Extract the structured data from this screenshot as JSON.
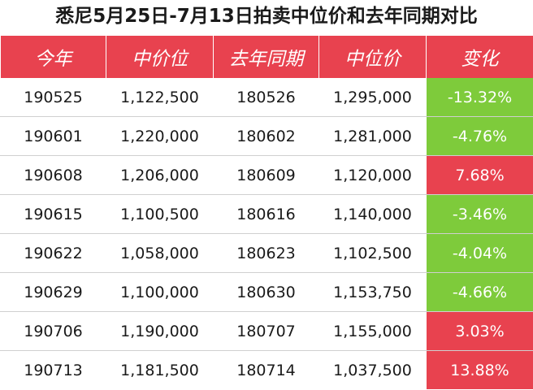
{
  "title": "悉尼5月25日-7月13日拍卖中位价和去年同期对比",
  "colors": {
    "header_bg": "#e8424f",
    "increase": "#e8424f",
    "decrease": "#7ecb3b"
  },
  "table": {
    "headers": [
      "今年",
      "中价位",
      "去年同期",
      "中位价",
      "变化"
    ],
    "rows": [
      {
        "this_year": "190525",
        "mid_price": "1,122,500",
        "last_year": "180526",
        "last_mid_price": "1,295,000",
        "change": "-13.32%",
        "direction": "down"
      },
      {
        "this_year": "190601",
        "mid_price": "1,220,000",
        "last_year": "180602",
        "last_mid_price": "1,281,000",
        "change": "-4.76%",
        "direction": "down"
      },
      {
        "this_year": "190608",
        "mid_price": "1,206,000",
        "last_year": "180609",
        "last_mid_price": "1,120,000",
        "change": "7.68%",
        "direction": "up"
      },
      {
        "this_year": "190615",
        "mid_price": "1,100,500",
        "last_year": "180616",
        "last_mid_price": "1,140,000",
        "change": "-3.46%",
        "direction": "down"
      },
      {
        "this_year": "190622",
        "mid_price": "1,058,000",
        "last_year": "180623",
        "last_mid_price": "1,102,500",
        "change": "-4.04%",
        "direction": "down"
      },
      {
        "this_year": "190629",
        "mid_price": "1,100,000",
        "last_year": "180630",
        "last_mid_price": "1,153,750",
        "change": "-4.66%",
        "direction": "down"
      },
      {
        "this_year": "190706",
        "mid_price": "1,190,000",
        "last_year": "180707",
        "last_mid_price": "1,155,000",
        "change": "3.03%",
        "direction": "up"
      },
      {
        "this_year": "190713",
        "mid_price": "1,181,500",
        "last_year": "180714",
        "last_mid_price": "1,037,500",
        "change": "13.88%",
        "direction": "up"
      }
    ]
  }
}
